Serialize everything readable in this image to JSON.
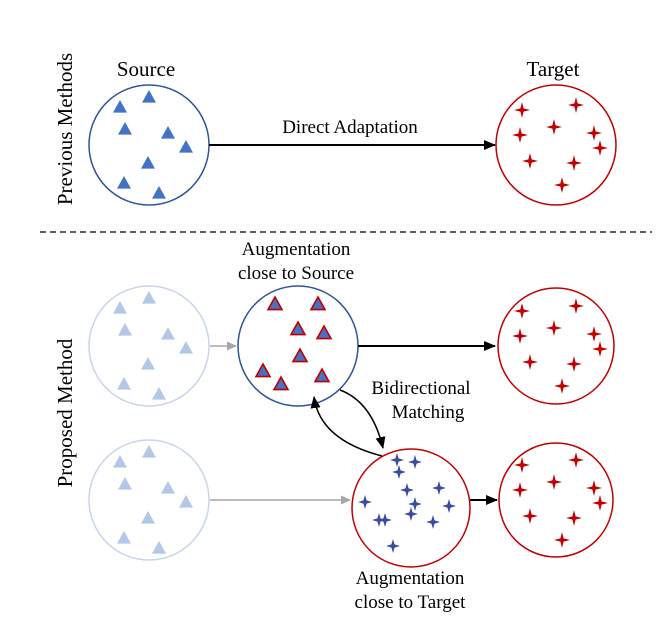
{
  "labels": {
    "previous_methods": "Previous Methods",
    "proposed_method": "Proposed Method",
    "source": "Source",
    "target": "Target",
    "direct_adaptation": "Direct Adaptation",
    "aug_source_line1": "Augmentation",
    "aug_source_line2": "close to Source",
    "bidirectional_line1": "Bidirectional",
    "bidirectional_line2": "Matching",
    "aug_target_line1": "Augmentation",
    "aug_target_line2": "close to Target"
  },
  "colors": {
    "source_blue": "#4472C4",
    "source_circle": "#2F5597",
    "target_red": "#C00000",
    "faded_blue": "#B4C7E7",
    "faded_circle": "#C9D5EA",
    "aug_target_star": "#3B4BA0",
    "gray_arrow": "#A6A6A6"
  }
}
